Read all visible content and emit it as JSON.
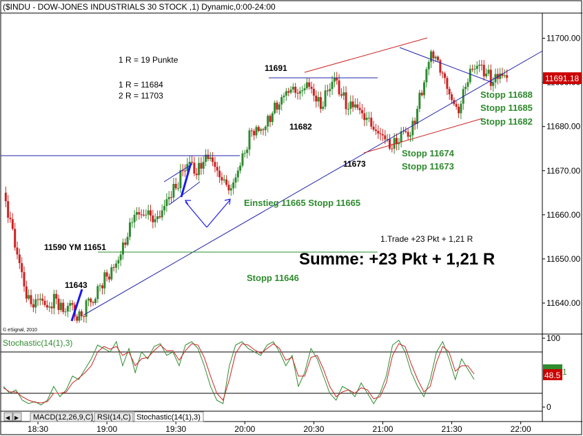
{
  "window_title": "($INDU - DOW-JONES INDUSTRIALS 30 STOCK ,1) Dynamic,0:00-24:00",
  "copyright": "© eSignal, 2010",
  "last_price_badge": "11691.18",
  "stoch_badge_left": "48.5",
  "stoch_badge_right": "1",
  "annotations": {
    "r_def": "1 R = 19 Punkte",
    "r1": "1 R = 11684",
    "r2": "2 R = 11703",
    "p11691": "11691",
    "p11682": "11682",
    "p11673": "11673",
    "p11643": "11643",
    "ym": "11590 YM 11651",
    "einstieg": "Einstieg 11665  Stopp 11665",
    "stopp11688": "Stopp 11688",
    "stopp11685": "Stopp 11685",
    "stopp11682": "Stopp 11682",
    "stopp11674": "Stopp 11674",
    "stopp11673": "Stopp 11673",
    "stopp11646": "Stopp 11646",
    "trade": "1.Trade +23 Pkt + 1,21 R",
    "summe": "Summe: +23 Pkt + 1,21 R"
  },
  "tabs": [
    "MACD(12,26,9,C)",
    "RSI(14,C)",
    "Stochastic(14(1),3)"
  ],
  "colors": {
    "up": "#2e8b2e",
    "down": "#cc2222",
    "badge": "#cc0000",
    "stoch_k": "#2e8b2e",
    "stoch_d": "#cc2222",
    "ann_green": "#2d8a2d",
    "line_blue": "#2222aa",
    "line_red": "#cc2222"
  },
  "chart_data": [
    {
      "type": "candlestick",
      "title": "($INDU - DOW-JONES INDUSTRIALS 30 STOCK ,1) Dynamic,0:00-24:00",
      "x_ticks": [
        "18:30",
        "19:00",
        "19:30",
        "20:00",
        "20:30",
        "21:00",
        "21:30",
        "22:00"
      ],
      "y_ticks": [
        11640,
        11650,
        11660,
        11670,
        11680,
        11690,
        11700
      ],
      "ylim": [
        11632,
        11704
      ],
      "xlim": [
        "18:15",
        "22:10"
      ],
      "last_value": 11691.18,
      "horizontal_levels": [
        11673.5,
        11691,
        11651.5
      ],
      "close_path": [
        [
          "18:15",
          11665
        ],
        [
          "18:18",
          11659
        ],
        [
          "18:21",
          11651
        ],
        [
          "18:23",
          11647
        ],
        [
          "18:25",
          11641
        ],
        [
          "18:28",
          11639
        ],
        [
          "18:31",
          11641
        ],
        [
          "18:34",
          11639
        ],
        [
          "18:38",
          11641
        ],
        [
          "18:41",
          11638
        ],
        [
          "18:44",
          11640
        ],
        [
          "18:47",
          11636
        ],
        [
          "18:49",
          11637
        ],
        [
          "18:52",
          11641
        ],
        [
          "18:54",
          11640
        ],
        [
          "18:57",
          11644
        ],
        [
          "19:00",
          11646
        ],
        [
          "19:03",
          11648
        ],
        [
          "19:06",
          11651
        ],
        [
          "19:09",
          11655
        ],
        [
          "19:12",
          11660
        ],
        [
          "19:15",
          11660
        ],
        [
          "19:18",
          11661
        ],
        [
          "19:21",
          11659
        ],
        [
          "19:24",
          11661
        ],
        [
          "19:27",
          11664
        ],
        [
          "19:30",
          11666
        ],
        [
          "19:33",
          11670
        ],
        [
          "19:36",
          11672
        ],
        [
          "19:39",
          11669
        ],
        [
          "19:42",
          11672
        ],
        [
          "19:45",
          11673
        ],
        [
          "19:48",
          11670
        ],
        [
          "19:51",
          11668
        ],
        [
          "19:54",
          11666
        ],
        [
          "19:57",
          11670
        ],
        [
          "20:00",
          11674
        ],
        [
          "20:03",
          11679
        ],
        [
          "20:06",
          11679
        ],
        [
          "20:09",
          11680
        ],
        [
          "20:12",
          11683
        ],
        [
          "20:15",
          11685
        ],
        [
          "20:18",
          11688
        ],
        [
          "20:21",
          11689
        ],
        [
          "20:24",
          11688
        ],
        [
          "20:27",
          11690
        ],
        [
          "20:30",
          11687
        ],
        [
          "20:33",
          11684
        ],
        [
          "20:36",
          11688
        ],
        [
          "20:39",
          11691
        ],
        [
          "20:42",
          11687
        ],
        [
          "20:45",
          11684
        ],
        [
          "20:48",
          11685
        ],
        [
          "20:51",
          11683
        ],
        [
          "20:54",
          11682
        ],
        [
          "20:57",
          11679
        ],
        [
          "21:00",
          11678
        ],
        [
          "21:03",
          11675
        ],
        [
          "21:06",
          11676
        ],
        [
          "21:09",
          11679
        ],
        [
          "21:12",
          11678
        ],
        [
          "21:15",
          11684
        ],
        [
          "21:18",
          11690
        ],
        [
          "21:21",
          11697
        ],
        [
          "21:24",
          11695
        ],
        [
          "21:27",
          11691
        ],
        [
          "21:30",
          11686
        ],
        [
          "21:33",
          11683
        ],
        [
          "21:36",
          11689
        ],
        [
          "21:39",
          11693
        ],
        [
          "21:42",
          11694
        ],
        [
          "21:45",
          11692
        ],
        [
          "21:48",
          11690
        ],
        [
          "21:51",
          11692
        ],
        [
          "21:54",
          11691
        ]
      ]
    },
    {
      "type": "line",
      "title": "Stochastic(14(1),3)",
      "y_ticks": [
        0,
        100
      ],
      "ylim": [
        -5,
        105
      ],
      "levels": [
        20,
        80
      ],
      "series": [
        {
          "name": "%K",
          "values": [
            30,
            20,
            25,
            10,
            5,
            8,
            3,
            10,
            30,
            15,
            25,
            45,
            40,
            55,
            70,
            90,
            85,
            80,
            95,
            60,
            85,
            50,
            80,
            70,
            88,
            92,
            75,
            80,
            60,
            90,
            95,
            85,
            60,
            30,
            10,
            5,
            60,
            90,
            95,
            85,
            80,
            75,
            90,
            95,
            80,
            60,
            75,
            30,
            50,
            85,
            70,
            45,
            20,
            10,
            30,
            25,
            15,
            35,
            20,
            5,
            20,
            45,
            90,
            97,
            80,
            50,
            30,
            15,
            40,
            80,
            95,
            70,
            40,
            70,
            55,
            40
          ]
        },
        {
          "name": "%D",
          "values": [
            28,
            22,
            22,
            15,
            10,
            7,
            6,
            8,
            20,
            20,
            22,
            35,
            42,
            50,
            60,
            80,
            88,
            84,
            88,
            75,
            80,
            60,
            70,
            72,
            82,
            90,
            82,
            82,
            68,
            82,
            92,
            90,
            72,
            45,
            20,
            10,
            40,
            78,
            92,
            90,
            83,
            78,
            85,
            92,
            85,
            68,
            72,
            45,
            45,
            72,
            75,
            55,
            30,
            15,
            22,
            25,
            20,
            28,
            25,
            12,
            15,
            35,
            75,
            92,
            88,
            62,
            40,
            22,
            30,
            65,
            88,
            80,
            52,
            60,
            60,
            48
          ]
        }
      ]
    }
  ]
}
